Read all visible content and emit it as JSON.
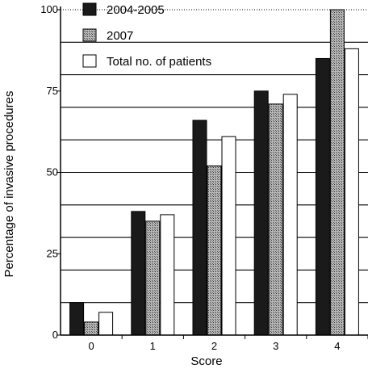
{
  "chart_data": {
    "type": "bar",
    "xlabel": "Score",
    "ylabel": "Percentage of invasive procedures",
    "categories": [
      "0",
      "1",
      "2",
      "3",
      "4"
    ],
    "ylim": [
      0,
      100
    ],
    "yticks": [
      "0",
      "25",
      "50",
      "75",
      "100"
    ],
    "grid": "horizontal",
    "legend_position": "top-left",
    "series": [
      {
        "name": "2004-2005",
        "values": [
          10,
          38,
          66,
          75,
          85
        ],
        "color": "#1a1a1a",
        "fill": "solid"
      },
      {
        "name": "2007",
        "values": [
          4,
          35,
          52,
          71,
          100
        ],
        "color": "#8f8f8f",
        "fill": "hatched"
      },
      {
        "name": "Total no. of patients",
        "values": [
          7,
          37,
          61,
          74,
          88
        ],
        "color": "#ffffff",
        "fill": "outline"
      }
    ]
  }
}
